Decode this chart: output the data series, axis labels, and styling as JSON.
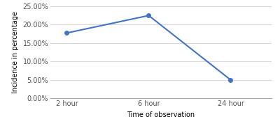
{
  "x_labels": [
    "2 hour",
    "6 hour",
    "24 hour"
  ],
  "x_values": [
    0,
    1,
    2
  ],
  "y_values": [
    0.1775,
    0.225,
    0.05
  ],
  "line_color": "#4472C4",
  "marker": "o",
  "marker_size": 4,
  "xlabel": "Time of observation",
  "ylabel": "Incidence in percentage",
  "ylim": [
    0.0,
    0.25
  ],
  "yticks": [
    0.0,
    0.05,
    0.1,
    0.15,
    0.2,
    0.25
  ],
  "ytick_labels": [
    "0.00%",
    "5.00%",
    "10.00%",
    "15.00%",
    "20.00%",
    "25.00%"
  ],
  "xlabel_fontsize": 7,
  "ylabel_fontsize": 7,
  "tick_fontsize": 7,
  "background_color": "#ffffff",
  "grid_color": "#d9d9d9",
  "line_width": 1.5
}
